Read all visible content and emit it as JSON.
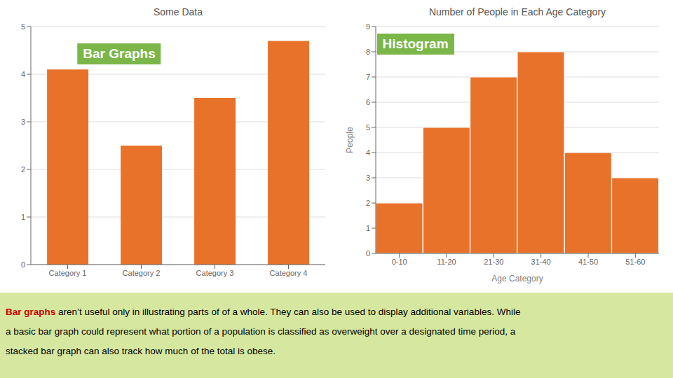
{
  "chart_data": [
    {
      "type": "bar",
      "title": "Some Data",
      "categories": [
        "Category 1",
        "Category 2",
        "Category 3",
        "Category 4"
      ],
      "values": [
        4.1,
        2.5,
        3.5,
        4.7
      ],
      "color": "#E8722A",
      "ylim": [
        0,
        5
      ],
      "yticks": [
        0,
        1,
        2,
        3,
        4,
        5
      ],
      "grid": true,
      "annotations": [
        "Bar Graphs"
      ]
    },
    {
      "type": "histogram",
      "title": "Number of People in Each Age Category",
      "categories": [
        "0-10",
        "11-20",
        "21-30",
        "31-40",
        "41-50",
        "51-60"
      ],
      "values": [
        2,
        5,
        7,
        8,
        4,
        3
      ],
      "color": "#E8722A",
      "xlabel": "Age Category",
      "ylabel": "People",
      "ylim": [
        0,
        9
      ],
      "yticks": [
        0,
        1,
        2,
        3,
        4,
        5,
        6,
        7,
        8,
        9
      ],
      "grid": true,
      "annotations": [
        "Histogram"
      ]
    }
  ],
  "caption": {
    "bold": "Bar graphs",
    "color": "#CC0000",
    "text": [
      " aren’t useful only in illustrating parts of of a whole. They can also be used to display additional variables. While",
      "a basic bar graph could represent what portion of a population is classified as overweight over a designated time period, a",
      "stacked bar graph can also track how much of the total is obese."
    ]
  }
}
